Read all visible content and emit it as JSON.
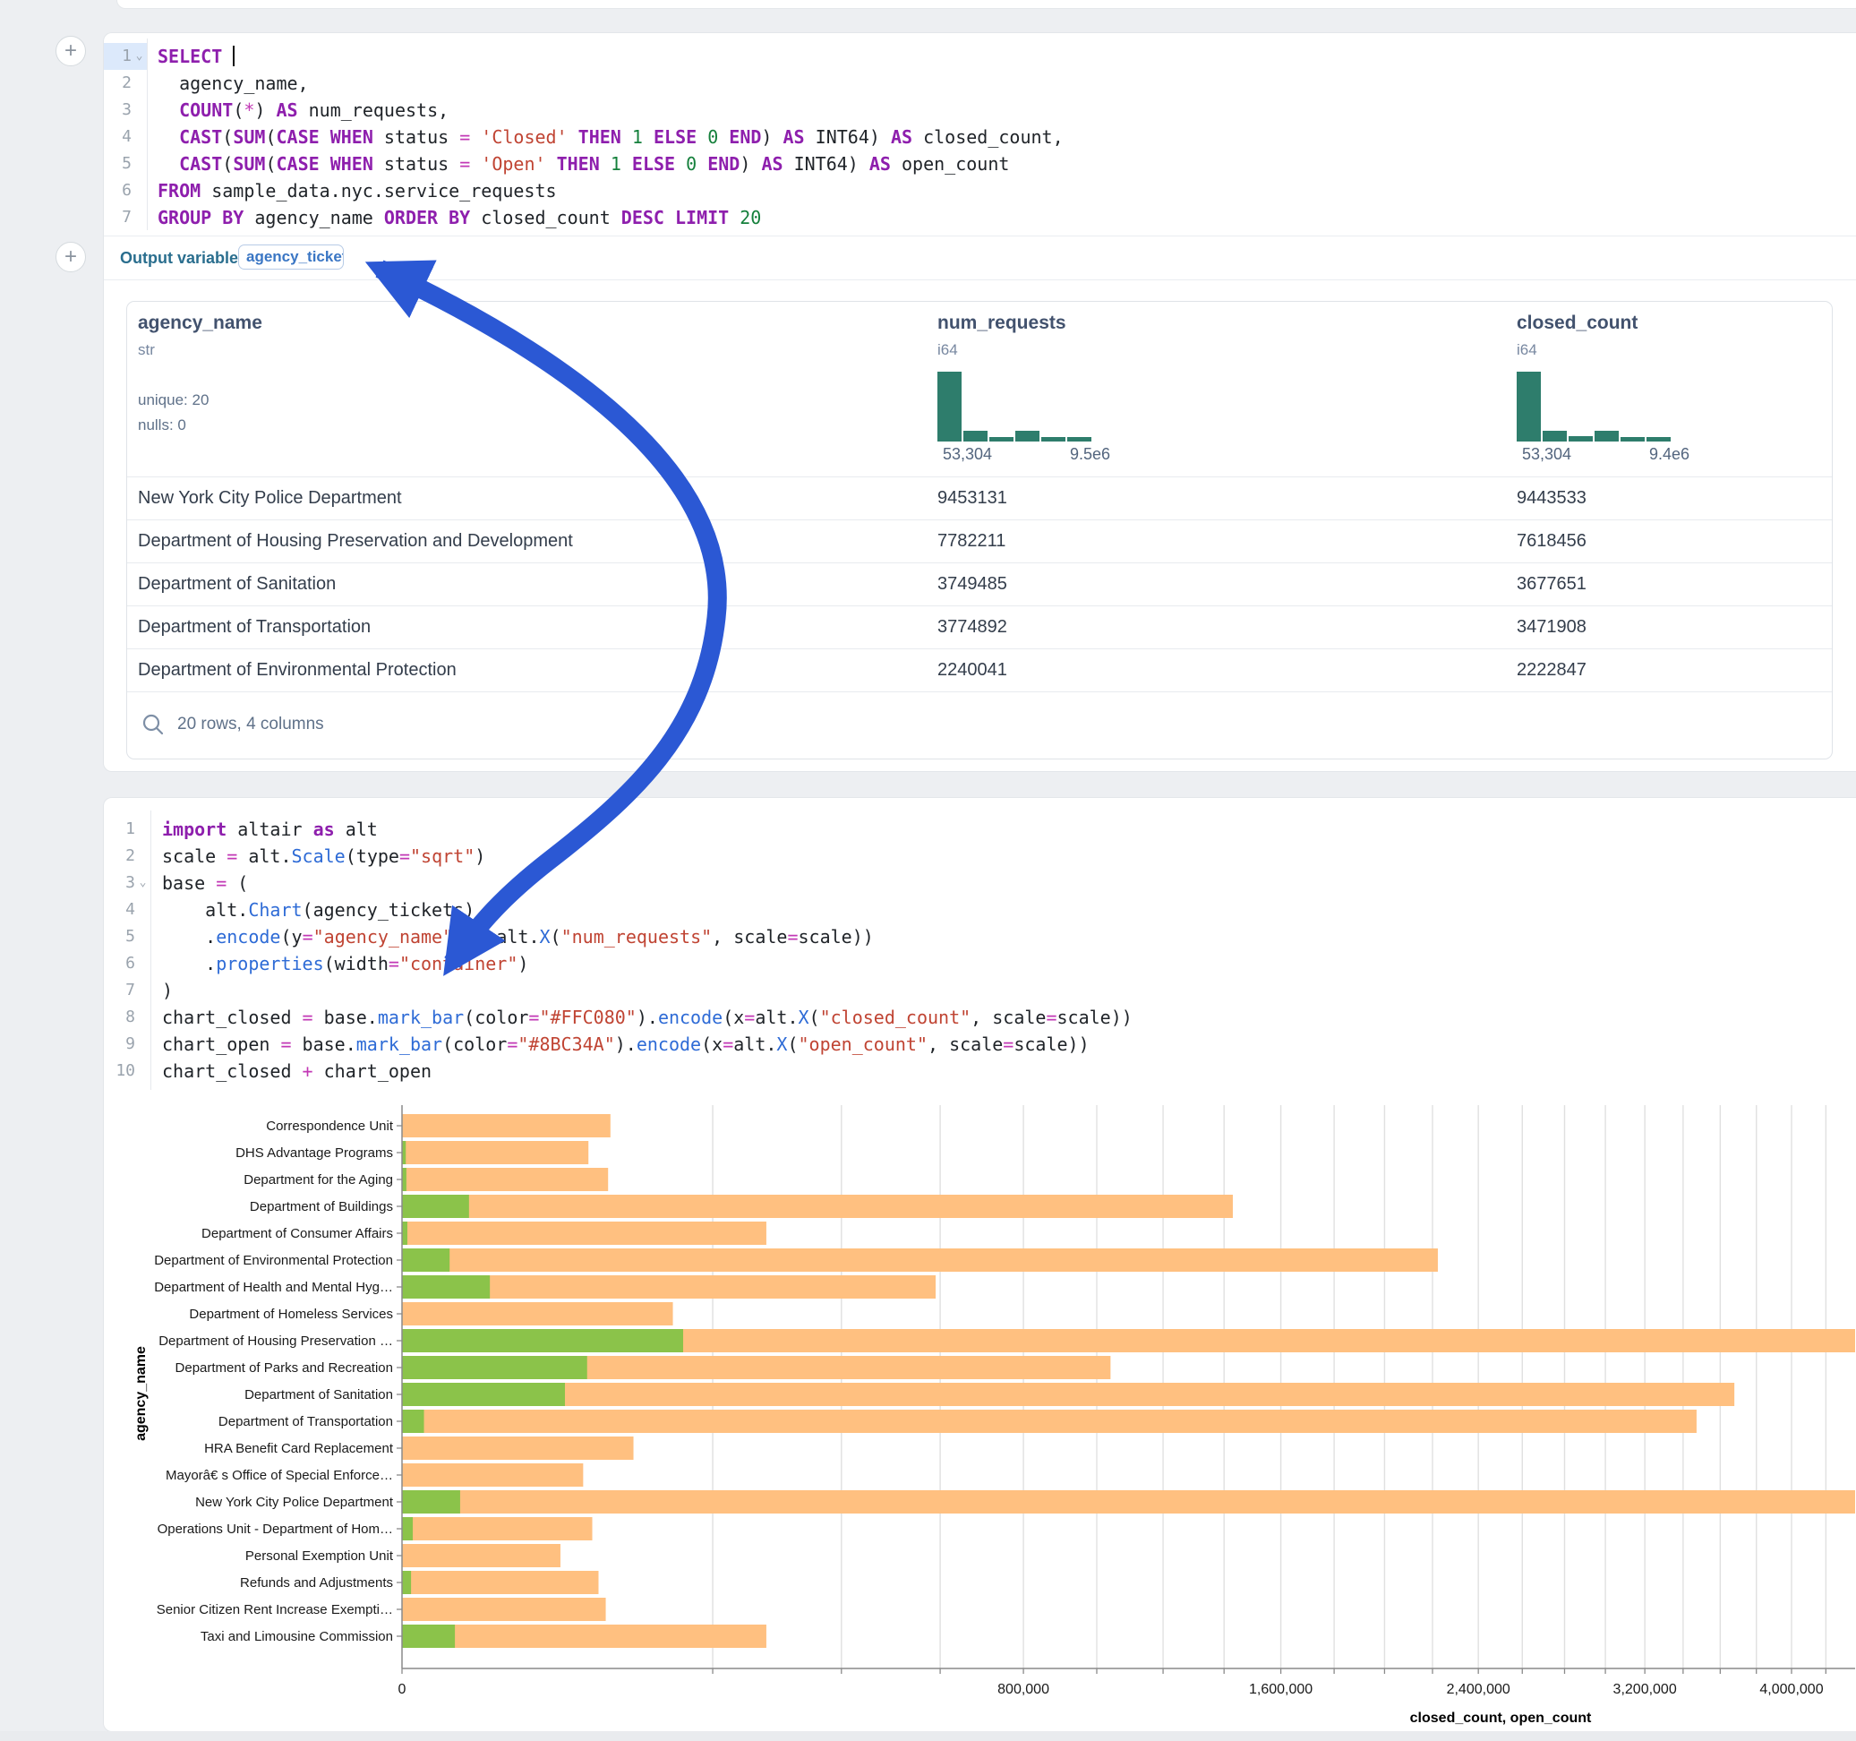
{
  "sql_cell": {
    "lines": [
      {
        "n": "1",
        "active": true,
        "chevron": true,
        "cursor": true,
        "tokens": [
          [
            "kw",
            "SELECT"
          ],
          [
            "id",
            " "
          ]
        ]
      },
      {
        "n": "2",
        "tokens": [
          [
            "id",
            "  agency_name,"
          ]
        ]
      },
      {
        "n": "3",
        "tokens": [
          [
            "id",
            "  "
          ],
          [
            "kw",
            "COUNT"
          ],
          [
            "id",
            "("
          ],
          [
            "op",
            "*"
          ],
          [
            "id",
            ") "
          ],
          [
            "kw",
            "AS"
          ],
          [
            "id",
            " num_requests,"
          ]
        ]
      },
      {
        "n": "4",
        "tokens": [
          [
            "id",
            "  "
          ],
          [
            "kw",
            "CAST"
          ],
          [
            "id",
            "("
          ],
          [
            "kw",
            "SUM"
          ],
          [
            "id",
            "("
          ],
          [
            "kw",
            "CASE"
          ],
          [
            "id",
            " "
          ],
          [
            "kw",
            "WHEN"
          ],
          [
            "id",
            " status "
          ],
          [
            "op",
            "="
          ],
          [
            "id",
            " "
          ],
          [
            "str",
            "'Closed'"
          ],
          [
            "id",
            " "
          ],
          [
            "kw",
            "THEN"
          ],
          [
            "id",
            " "
          ],
          [
            "num",
            "1"
          ],
          [
            "id",
            " "
          ],
          [
            "kw",
            "ELSE"
          ],
          [
            "id",
            " "
          ],
          [
            "num",
            "0"
          ],
          [
            "id",
            " "
          ],
          [
            "kw",
            "END"
          ],
          [
            "id",
            ") "
          ],
          [
            "kw",
            "AS"
          ],
          [
            "id",
            " INT64) "
          ],
          [
            "kw",
            "AS"
          ],
          [
            "id",
            " closed_count,"
          ]
        ]
      },
      {
        "n": "5",
        "tokens": [
          [
            "id",
            "  "
          ],
          [
            "kw",
            "CAST"
          ],
          [
            "id",
            "("
          ],
          [
            "kw",
            "SUM"
          ],
          [
            "id",
            "("
          ],
          [
            "kw",
            "CASE"
          ],
          [
            "id",
            " "
          ],
          [
            "kw",
            "WHEN"
          ],
          [
            "id",
            " status "
          ],
          [
            "op",
            "="
          ],
          [
            "id",
            " "
          ],
          [
            "str",
            "'Open'"
          ],
          [
            "id",
            " "
          ],
          [
            "kw",
            "THEN"
          ],
          [
            "id",
            " "
          ],
          [
            "num",
            "1"
          ],
          [
            "id",
            " "
          ],
          [
            "kw",
            "ELSE"
          ],
          [
            "id",
            " "
          ],
          [
            "num",
            "0"
          ],
          [
            "id",
            " "
          ],
          [
            "kw",
            "END"
          ],
          [
            "id",
            ") "
          ],
          [
            "kw",
            "AS"
          ],
          [
            "id",
            " INT64) "
          ],
          [
            "kw",
            "AS"
          ],
          [
            "id",
            " open_count"
          ]
        ]
      },
      {
        "n": "6",
        "tokens": [
          [
            "kw",
            "FROM"
          ],
          [
            "id",
            " sample_data.nyc.service_requests"
          ]
        ]
      },
      {
        "n": "7",
        "tokens": [
          [
            "kw",
            "GROUP BY"
          ],
          [
            "id",
            " agency_name "
          ],
          [
            "kw",
            "ORDER BY"
          ],
          [
            "id",
            " closed_count "
          ],
          [
            "kw",
            "DESC"
          ],
          [
            "id",
            " "
          ],
          [
            "kw",
            "LIMIT"
          ],
          [
            "id",
            " "
          ],
          [
            "num",
            "20"
          ]
        ]
      }
    ],
    "output_variable_label": "Output variable:",
    "output_variable_value": "agency_tickets",
    "add_button_label": "+"
  },
  "table": {
    "columns": [
      {
        "name": "agency_name",
        "type": "str",
        "stat1": "unique: 20",
        "stat2": "nulls: 0"
      },
      {
        "name": "num_requests",
        "type": "i64",
        "hist": [
          1,
          0.15,
          0.07,
          0.15,
          0.06,
          0.06
        ],
        "min_label": "53,304",
        "max_label": "9.5e6"
      },
      {
        "name": "closed_count",
        "type": "i64",
        "hist": [
          1,
          0.15,
          0.08,
          0.16,
          0.07,
          0.07
        ],
        "min_label": "53,304",
        "max_label": "9.4e6"
      }
    ],
    "rows": [
      {
        "agency_name": "New York City Police Department",
        "num_requests": "9453131",
        "closed_count": "9443533"
      },
      {
        "agency_name": "Department of Housing Preservation and Development",
        "num_requests": "7782211",
        "closed_count": "7618456"
      },
      {
        "agency_name": "Department of Sanitation",
        "num_requests": "3749485",
        "closed_count": "3677651"
      },
      {
        "agency_name": "Department of Transportation",
        "num_requests": "3774892",
        "closed_count": "3471908"
      },
      {
        "agency_name": "Department of Environmental Protection",
        "num_requests": "2240041",
        "closed_count": "2222847"
      }
    ],
    "footer": "20 rows, 4 columns"
  },
  "python_cell": {
    "lines": [
      {
        "n": "1",
        "tokens": [
          [
            "kw",
            "import"
          ],
          [
            "id",
            " altair "
          ],
          [
            "kw",
            "as"
          ],
          [
            "id",
            " alt"
          ]
        ]
      },
      {
        "n": "2",
        "tokens": [
          [
            "id",
            "scale "
          ],
          [
            "op",
            "="
          ],
          [
            "id",
            " alt."
          ],
          [
            "fn",
            "Scale"
          ],
          [
            "id",
            "(type"
          ],
          [
            "op",
            "="
          ],
          [
            "str",
            "\"sqrt\""
          ],
          [
            "id",
            ")"
          ]
        ]
      },
      {
        "n": "3",
        "chevron": true,
        "tokens": [
          [
            "id",
            "base "
          ],
          [
            "op",
            "="
          ],
          [
            "id",
            " ("
          ]
        ]
      },
      {
        "n": "4",
        "tokens": [
          [
            "id",
            "    alt."
          ],
          [
            "fn",
            "Chart"
          ],
          [
            "id",
            "(agency_tickets)"
          ]
        ]
      },
      {
        "n": "5",
        "tokens": [
          [
            "id",
            "    ."
          ],
          [
            "fn",
            "encode"
          ],
          [
            "id",
            "(y"
          ],
          [
            "op",
            "="
          ],
          [
            "str",
            "\"agency_name\""
          ],
          [
            "id",
            ", x"
          ],
          [
            "op",
            "="
          ],
          [
            "id",
            "alt."
          ],
          [
            "fn",
            "X"
          ],
          [
            "id",
            "("
          ],
          [
            "str",
            "\"num_requests\""
          ],
          [
            "id",
            ", scale"
          ],
          [
            "op",
            "="
          ],
          [
            "id",
            "scale))"
          ]
        ]
      },
      {
        "n": "6",
        "tokens": [
          [
            "id",
            "    ."
          ],
          [
            "fn",
            "properties"
          ],
          [
            "id",
            "(width"
          ],
          [
            "op",
            "="
          ],
          [
            "str",
            "\"container\""
          ],
          [
            "id",
            ")"
          ]
        ]
      },
      {
        "n": "7",
        "tokens": [
          [
            "id",
            ")"
          ]
        ]
      },
      {
        "n": "8",
        "tokens": [
          [
            "id",
            "chart_closed "
          ],
          [
            "op",
            "="
          ],
          [
            "id",
            " base."
          ],
          [
            "fn",
            "mark_bar"
          ],
          [
            "id",
            "(color"
          ],
          [
            "op",
            "="
          ],
          [
            "str",
            "\"#FFC080\""
          ],
          [
            "id",
            ")."
          ],
          [
            "fn",
            "encode"
          ],
          [
            "id",
            "(x"
          ],
          [
            "op",
            "="
          ],
          [
            "id",
            "alt."
          ],
          [
            "fn",
            "X"
          ],
          [
            "id",
            "("
          ],
          [
            "str",
            "\"closed_count\""
          ],
          [
            "id",
            ", scale"
          ],
          [
            "op",
            "="
          ],
          [
            "id",
            "scale))"
          ]
        ]
      },
      {
        "n": "9",
        "tokens": [
          [
            "id",
            "chart_open "
          ],
          [
            "op",
            "="
          ],
          [
            "id",
            " base."
          ],
          [
            "fn",
            "mark_bar"
          ],
          [
            "id",
            "(color"
          ],
          [
            "op",
            "="
          ],
          [
            "str",
            "\"#8BC34A\""
          ],
          [
            "id",
            ")."
          ],
          [
            "fn",
            "encode"
          ],
          [
            "id",
            "(x"
          ],
          [
            "op",
            "="
          ],
          [
            "id",
            "alt."
          ],
          [
            "fn",
            "X"
          ],
          [
            "id",
            "("
          ],
          [
            "str",
            "\"open_count\""
          ],
          [
            "id",
            ", scale"
          ],
          [
            "op",
            "="
          ],
          [
            "id",
            "scale))"
          ]
        ]
      },
      {
        "n": "10",
        "tokens": [
          [
            "id",
            "chart_closed "
          ],
          [
            "op",
            "+"
          ],
          [
            "id",
            " chart_open"
          ]
        ]
      }
    ]
  },
  "chart_data": {
    "type": "bar",
    "orientation": "horizontal",
    "x_scale": "sqrt",
    "title": "",
    "xlabel": "closed_count, open_count",
    "ylabel": "agency_name",
    "categories": [
      "Correspondence Unit",
      "DHS Advantage Programs",
      "Department for the Aging",
      "Department of Buildings",
      "Department of Consumer Affairs",
      "Department of Environmental Protection",
      "Department of Health and Mental Hyg…",
      "Department of Homeless Services",
      "Department of Housing Preservation …",
      "Department of Parks and Recreation",
      "Department of Sanitation",
      "Department of Transportation",
      "HRA Benefit Card Replacement",
      "Mayorâ€ s Office of Special Enforce…",
      "New York City Police Department",
      "Operations Unit - Department of Hom…",
      "Personal Exemption Unit",
      "Refunds and Adjustments",
      "Senior Citizen Rent Increase Exempti…",
      "Taxi and Limousine Commission"
    ],
    "series": [
      {
        "name": "closed_count",
        "color": "#FFC080",
        "values": [
          90000,
          72000,
          88000,
          1430000,
          275000,
          2222847,
          590000,
          152000,
          7618456,
          1040000,
          3677651,
          3471908,
          111000,
          68000,
          9443533,
          75000,
          52000,
          80000,
          86000,
          275000
        ]
      },
      {
        "name": "open_count",
        "color": "#8BC34A",
        "values": [
          0,
          30,
          40,
          9300,
          60,
          4700,
          16000,
          0,
          163755,
          71000,
          55000,
          1000,
          0,
          0,
          7000,
          240,
          0,
          170,
          0,
          5800
        ]
      }
    ],
    "x_ticks": [
      0,
      800000,
      1600000,
      2400000,
      3200000,
      4000000
    ],
    "x_tick_labels": [
      "0",
      "800,000",
      "1,600,000",
      "2,400,000",
      "3,200,000",
      "4,000,000"
    ],
    "gridline_step": 200000,
    "grid": true,
    "legend": "none"
  },
  "colors": {
    "arrow": "#2b58d4",
    "bar_closed": "#FFC080",
    "bar_open": "#8BC34A",
    "histogram": "#2e7d6c"
  }
}
